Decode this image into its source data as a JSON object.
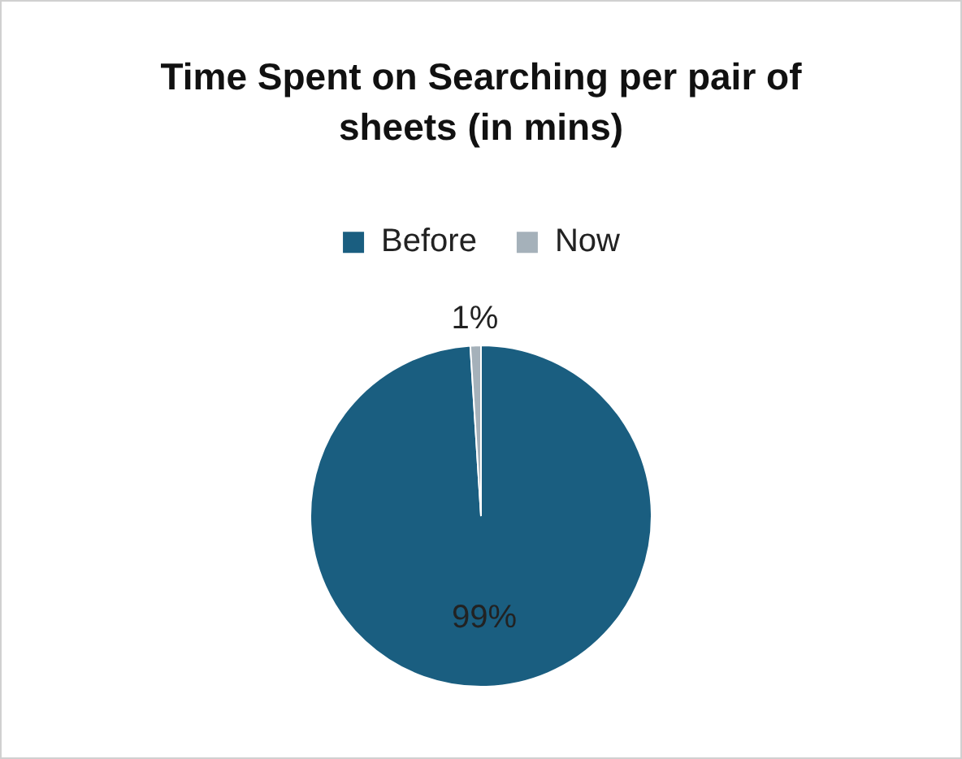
{
  "chart_data": {
    "type": "pie",
    "title": "Time Spent on Searching per pair of sheets (in mins)",
    "categories": [
      "Before",
      "Now"
    ],
    "values": [
      99,
      1
    ],
    "colors": [
      "#1a5e80",
      "#a5b1ba"
    ],
    "value_labels": [
      "99%",
      "1%"
    ],
    "legend": "top"
  }
}
